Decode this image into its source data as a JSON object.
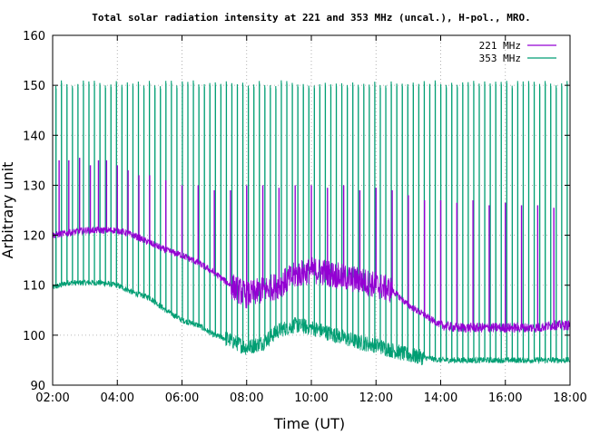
{
  "chart_data": {
    "type": "line",
    "title": "Total solar radiation intensity at 221 and 353 MHz (uncal.), H-pol., MRO.",
    "xlabel": "Time (UT)",
    "ylabel": "Arbitrary unit",
    "xlim": [
      "02:00",
      "18:00"
    ],
    "ylim": [
      90,
      160
    ],
    "x_ticks": [
      "02:00",
      "04:00",
      "06:00",
      "08:00",
      "10:00",
      "12:00",
      "14:00",
      "16:00",
      "18:00"
    ],
    "y_ticks": [
      90,
      100,
      110,
      120,
      130,
      140,
      150,
      160
    ],
    "grid": true,
    "legend_position": "top-right",
    "colors": {
      "221": "#9400d3",
      "353": "#009e73",
      "grid": "#a0a0a0"
    },
    "series": [
      {
        "name": "221 MHz",
        "color": "#9400d3",
        "baseline": [
          [
            "02:00",
            120
          ],
          [
            "02:30",
            120.5
          ],
          [
            "03:00",
            121
          ],
          [
            "03:30",
            121
          ],
          [
            "04:00",
            121
          ],
          [
            "04:30",
            120
          ],
          [
            "05:00",
            118.5
          ],
          [
            "05:30",
            117
          ],
          [
            "06:00",
            116
          ],
          [
            "06:30",
            114.5
          ],
          [
            "07:00",
            112.5
          ],
          [
            "07:30",
            110
          ],
          [
            "08:00",
            108
          ],
          [
            "08:30",
            109
          ],
          [
            "09:00",
            110
          ],
          [
            "09:30",
            112
          ],
          [
            "10:00",
            113
          ],
          [
            "10:30",
            112.5
          ],
          [
            "11:00",
            111.5
          ],
          [
            "11:30",
            111
          ],
          [
            "12:00",
            110
          ],
          [
            "12:30",
            109
          ],
          [
            "13:00",
            106
          ],
          [
            "13:30",
            104
          ],
          [
            "14:00",
            102
          ],
          [
            "14:30",
            101.5
          ],
          [
            "15:00",
            101.5
          ],
          [
            "15:30",
            101.5
          ],
          [
            "16:00",
            101.5
          ],
          [
            "16:30",
            101.5
          ],
          [
            "17:00",
            101.5
          ],
          [
            "17:30",
            102
          ],
          [
            "18:00",
            102
          ]
        ],
        "spike_peaks": [
          [
            "02:12",
            135
          ],
          [
            "02:30",
            135
          ],
          [
            "02:50",
            135.5
          ],
          [
            "03:10",
            134
          ],
          [
            "03:25",
            135
          ],
          [
            "03:40",
            135
          ],
          [
            "04:00",
            134
          ],
          [
            "04:20",
            133
          ],
          [
            "04:40",
            132
          ],
          [
            "05:00",
            132
          ],
          [
            "05:30",
            131
          ],
          [
            "06:00",
            130
          ],
          [
            "06:30",
            130
          ],
          [
            "07:00",
            129
          ],
          [
            "07:30",
            129
          ],
          [
            "08:00",
            130
          ],
          [
            "08:30",
            130
          ],
          [
            "09:00",
            129.5
          ],
          [
            "09:30",
            130
          ],
          [
            "10:00",
            130
          ],
          [
            "10:30",
            129.5
          ],
          [
            "11:00",
            130
          ],
          [
            "11:30",
            129
          ],
          [
            "12:00",
            129.5
          ],
          [
            "12:30",
            129
          ],
          [
            "13:00",
            128
          ],
          [
            "13:30",
            127
          ],
          [
            "14:00",
            127
          ],
          [
            "14:30",
            126.5
          ],
          [
            "15:00",
            127
          ],
          [
            "15:30",
            126
          ],
          [
            "16:00",
            126.5
          ],
          [
            "16:30",
            126
          ],
          [
            "17:00",
            126
          ],
          [
            "17:30",
            125.5
          ]
        ]
      },
      {
        "name": "353 MHz",
        "color": "#009e73",
        "baseline": [
          [
            "02:00",
            109.5
          ],
          [
            "02:30",
            110.5
          ],
          [
            "03:00",
            110.5
          ],
          [
            "03:30",
            110.5
          ],
          [
            "04:00",
            110
          ],
          [
            "04:30",
            108.5
          ],
          [
            "05:00",
            107.5
          ],
          [
            "05:30",
            105
          ],
          [
            "06:00",
            103
          ],
          [
            "06:30",
            102
          ],
          [
            "07:00",
            100
          ],
          [
            "07:30",
            99
          ],
          [
            "08:00",
            97.5
          ],
          [
            "08:30",
            98.5
          ],
          [
            "09:00",
            101
          ],
          [
            "09:30",
            102
          ],
          [
            "10:00",
            101.5
          ],
          [
            "10:30",
            100.5
          ],
          [
            "11:00",
            99.5
          ],
          [
            "11:30",
            98.5
          ],
          [
            "12:00",
            98
          ],
          [
            "12:30",
            97
          ],
          [
            "13:00",
            96
          ],
          [
            "13:30",
            95.5
          ],
          [
            "14:00",
            95
          ],
          [
            "14:30",
            95
          ],
          [
            "15:00",
            95
          ],
          [
            "15:30",
            95
          ],
          [
            "16:00",
            95
          ],
          [
            "16:30",
            95
          ],
          [
            "17:00",
            95
          ],
          [
            "17:30",
            95
          ],
          [
            "18:00",
            95
          ]
        ],
        "spike_peak": 151
      }
    ]
  }
}
